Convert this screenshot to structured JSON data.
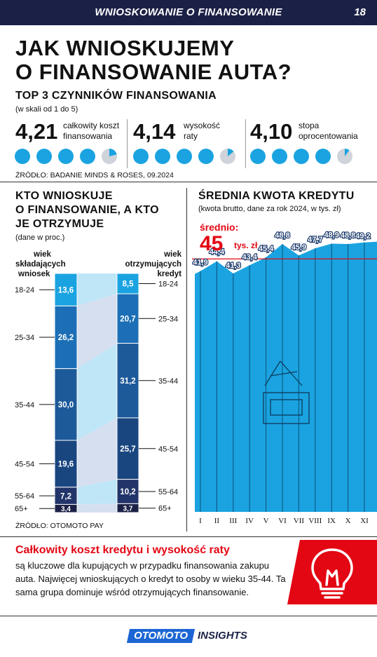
{
  "header": {
    "title": "WNIOSKOWANIE O FINANSOWANIE",
    "page_number": "18"
  },
  "headline": {
    "line1": "JAK WNIOSKUJEMY",
    "line2": "O FINANSOWANIE AUTA?"
  },
  "top3": {
    "title": "TOP 3 CZYNNIKÓW FINANSOWANIA",
    "scale_note": "(w skali od 1 do 5)",
    "items": [
      {
        "score": "4,21",
        "label_line1": "całkowity koszt",
        "label_line2": "finansowania",
        "value": 4.21
      },
      {
        "score": "4,14",
        "label_line1": "wysokość",
        "label_line2": "raty",
        "value": 4.14
      },
      {
        "score": "4,10",
        "label_line1": "stopa",
        "label_line2": "oprocentowania",
        "value": 4.1
      }
    ],
    "source": "ŹRÓDŁO: BADANIE MINDS & ROSES, 09.2024"
  },
  "left_section": {
    "title_line1": "KTO WNIOSKUJE",
    "title_line2": "O FINANSOWANIE, A KTO",
    "title_line3": "JE OTRZYMUJE",
    "note": "(dane w proc.)",
    "left_head_line1": "wiek",
    "left_head_line2": "składających",
    "left_head_line3": "wniosek",
    "right_head_line1": "wiek",
    "right_head_line2": "otrzymujących",
    "right_head_line3": "kredyt",
    "source": "ŹRÓDŁO: OTOMOTO PAY"
  },
  "right_section": {
    "title": "ŚREDNIA KWOTA KREDYTU",
    "note": "(kwota brutto, dane za rok 2024, w tys. zł)",
    "average_label": "średnio:",
    "average_value": "45",
    "average_unit": "tys. zł"
  },
  "chart_data": [
    {
      "type": "bar",
      "stacked": true,
      "title": "KTO WNIOSKUJE O FINANSOWANIE, A KTO JE OTRZYMUJE",
      "categories": [
        "18-24",
        "25-34",
        "35-44",
        "45-54",
        "55-64",
        "65+"
      ],
      "series": [
        {
          "name": "wiek składających wniosek",
          "values": [
            13.6,
            26.2,
            30.0,
            19.6,
            7.2,
            3.4
          ],
          "labels": [
            "13,6",
            "26,2",
            "30,0",
            "19,6",
            "7,2",
            "3,4"
          ]
        },
        {
          "name": "wiek otrzymujących kredyt",
          "values": [
            8.5,
            20.7,
            31.2,
            25.7,
            10.2,
            3.7
          ],
          "labels": [
            "8,5",
            "20,7",
            "31,2",
            "25,7",
            "10,2",
            "3,7"
          ]
        }
      ],
      "colors": [
        "#1aa3e0",
        "#1c6fb6",
        "#1d5a9a",
        "#1a4680",
        "#22356a",
        "#1b2146"
      ]
    },
    {
      "type": "area",
      "title": "ŚREDNIA KWOTA KREDYTU",
      "categories": [
        "I",
        "II",
        "III",
        "IV",
        "V",
        "VI",
        "VII",
        "VIII",
        "IX",
        "X",
        "XI"
      ],
      "values": [
        41.9,
        44.4,
        41.3,
        43.4,
        45.4,
        48.8,
        45.9,
        47.7,
        48.9,
        48.8,
        49.2
      ],
      "labels": [
        "41,9",
        "44,4",
        "41,3",
        "43,4",
        "45,4",
        "48,8",
        "45,9",
        "47,7",
        "48,9",
        "48,8",
        "49,2"
      ],
      "average": 45,
      "ylim": [
        0,
        50
      ],
      "color": "#1aa3e0"
    }
  ],
  "callout": {
    "title": "Całkowity koszt kredytu i wysokość raty",
    "body": "są kluczowe dla kupujących w przypadku finansowania zakupu auta. Najwięcej wnioskujących o kredyt to osoby w wieku 35-44. Ta sama grupa dominuje wśród otrzymujących finansowanie."
  },
  "footer": {
    "logo": "OTOMOTO",
    "insights": "INSIGHTS"
  }
}
